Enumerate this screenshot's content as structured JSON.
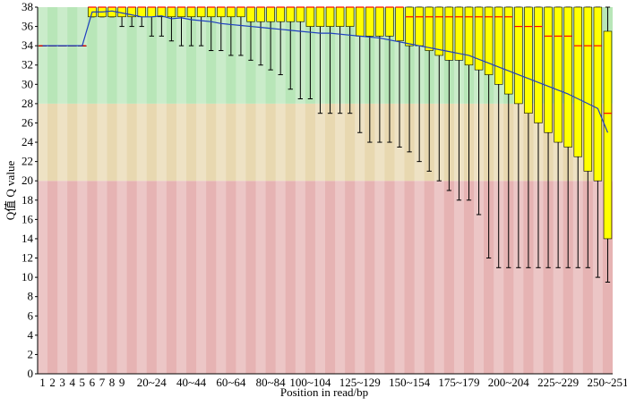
{
  "chart_data": {
    "type": "boxplot",
    "y_label": "Q值 Q value",
    "x_label": "Position  in read/bp",
    "categories": [
      "1",
      "2",
      "3",
      "4",
      "5",
      "6",
      "7",
      "8",
      "9",
      null,
      null,
      "20~24",
      null,
      null,
      null,
      "40~44",
      null,
      null,
      null,
      "60~64",
      null,
      null,
      null,
      "80~84",
      null,
      null,
      null,
      "100~104",
      null,
      null,
      null,
      null,
      "125~129",
      null,
      null,
      null,
      null,
      "150~154",
      null,
      null,
      null,
      null,
      "175~179",
      null,
      null,
      null,
      null,
      "200~204",
      null,
      null,
      null,
      null,
      "225~229",
      null,
      null,
      null,
      null,
      "250~251"
    ],
    "whisker_low": [
      34,
      34,
      34,
      34,
      34,
      37,
      37,
      37,
      36,
      36,
      36,
      35,
      35,
      34.5,
      34,
      34,
      34,
      33.5,
      33.5,
      33,
      33,
      32.5,
      32,
      31.5,
      31,
      29.5,
      28.5,
      28.5,
      27,
      27,
      27,
      27,
      25,
      24,
      24,
      24,
      23.5,
      23,
      22,
      21,
      20,
      19,
      18,
      18,
      16.5,
      12,
      11,
      11,
      11,
      11,
      11,
      11,
      11,
      11,
      11,
      11,
      10,
      9.5
    ],
    "q1": [
      34,
      34,
      34,
      34,
      34,
      37,
      37,
      37,
      37,
      37,
      37,
      37,
      37,
      37,
      37,
      37,
      37,
      37,
      37,
      37,
      37,
      36.5,
      36.5,
      36.5,
      36.5,
      36.5,
      36.5,
      36,
      36,
      36,
      36,
      36,
      35,
      35,
      35,
      35,
      34.5,
      34,
      34,
      33.5,
      33,
      32.5,
      32.5,
      32,
      31.5,
      31,
      30,
      29,
      28,
      27,
      26,
      25,
      24,
      23.5,
      22.5,
      21,
      20,
      14
    ],
    "median": [
      34,
      34,
      34,
      34,
      34,
      38,
      38,
      38,
      38,
      38,
      38,
      38,
      38,
      38,
      38,
      38,
      38,
      38,
      38,
      38,
      38,
      38,
      38,
      38,
      38,
      38,
      38,
      38,
      38,
      38,
      38,
      38,
      38,
      38,
      38,
      38,
      38,
      37,
      37,
      37,
      37,
      37,
      37,
      37,
      37,
      37,
      37,
      37,
      36,
      36,
      36,
      35,
      35,
      35,
      34,
      34,
      34,
      27
    ],
    "q3": [
      34,
      34,
      34,
      34,
      34,
      38,
      38,
      38,
      38,
      38,
      38,
      38,
      38,
      38,
      38,
      38,
      38,
      38,
      38,
      38,
      38,
      38,
      38,
      38,
      38,
      38,
      38,
      38,
      38,
      38,
      38,
      38,
      38,
      38,
      38,
      38,
      38,
      38,
      38,
      38,
      38,
      38,
      38,
      38,
      38,
      38,
      38,
      38,
      38,
      38,
      38,
      38,
      38,
      38,
      38,
      38,
      38,
      35.5
    ],
    "whisker_high": [
      34,
      34,
      34,
      34,
      34,
      38,
      38,
      38,
      38,
      38,
      38,
      38,
      38,
      38,
      38,
      38,
      38,
      38,
      38,
      38,
      38,
      38,
      38,
      38,
      38,
      38,
      38,
      38,
      38,
      38,
      38,
      38,
      38,
      38,
      38,
      38,
      38,
      38,
      38,
      38,
      38,
      38,
      38,
      38,
      38,
      38,
      38,
      38,
      38,
      38,
      38,
      38,
      38,
      38,
      38,
      38,
      38,
      38
    ],
    "mean": [
      34,
      34,
      34,
      34,
      34,
      37.5,
      37.5,
      37.6,
      37.4,
      37.2,
      37,
      37,
      37.1,
      36.8,
      36.9,
      36.7,
      36.6,
      36.5,
      36.3,
      36.2,
      36.1,
      36,
      35.9,
      35.8,
      35.7,
      35.6,
      35.5,
      35.4,
      35.3,
      35.3,
      35.2,
      35.1,
      35,
      34.9,
      34.8,
      34.6,
      34.4,
      34.2,
      34,
      33.8,
      33.6,
      33.4,
      33.2,
      33,
      32.6,
      32.2,
      31.8,
      31.4,
      31,
      30.6,
      30.2,
      29.8,
      29.4,
      29,
      28.5,
      28,
      27.5,
      25
    ],
    "box_color": "#ffff00",
    "median_color": "#ff0000",
    "mean_color": "#1f3fbf",
    "zones": [
      {
        "from": 0,
        "to": 20,
        "color": "#e6b3b3"
      },
      {
        "from": 20,
        "to": 28,
        "color": "#e8d8b0"
      },
      {
        "from": 28,
        "to": 38,
        "color": "#b8e6b8"
      }
    ],
    "ylim": [
      0,
      38
    ],
    "yticks": [
      0,
      2,
      4,
      6,
      8,
      10,
      12,
      14,
      16,
      18,
      20,
      22,
      24,
      26,
      28,
      30,
      32,
      34,
      36,
      38
    ]
  }
}
